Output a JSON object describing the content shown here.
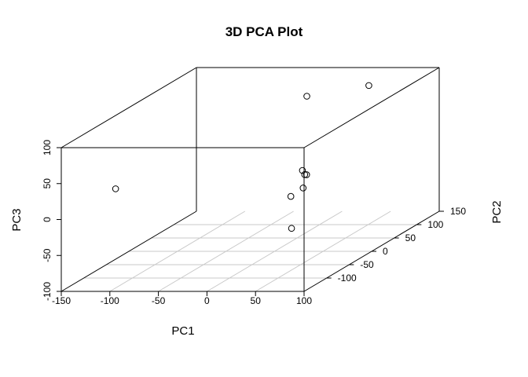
{
  "chart_data": {
    "type": "scatter",
    "title": "3D PCA Plot",
    "xlabel": "PC1",
    "ylabel": "PC2",
    "zlabel": "PC3",
    "xlim": [
      -150,
      100
    ],
    "ylim": [
      -150,
      150
    ],
    "zlim": [
      -100,
      100
    ],
    "x_ticks": [
      "-150",
      "-100",
      "-50",
      "0",
      "50",
      "100"
    ],
    "y_ticks": [
      "-100",
      "-50",
      "0",
      "50",
      "100",
      "150"
    ],
    "z_ticks": [
      "-100",
      "-50",
      "0",
      "50",
      "100"
    ],
    "grid": "xy-floor",
    "box": true,
    "marker": "open-circle",
    "point_color": "#000000",
    "points": [
      {
        "x": -95,
        "y": -148,
        "z": 42
      },
      {
        "x": 50,
        "y": -70,
        "z": -42
      },
      {
        "x": 40,
        "y": -50,
        "z": -5
      },
      {
        "x": 48,
        "y": -40,
        "z": 3
      },
      {
        "x": 45,
        "y": -30,
        "z": 18
      },
      {
        "x": 46,
        "y": -28,
        "z": 17
      },
      {
        "x": 38,
        "y": -20,
        "z": 20
      },
      {
        "x": 11,
        "y": 48,
        "z": 98
      },
      {
        "x": 60,
        "y": 80,
        "z": 101
      }
    ]
  }
}
